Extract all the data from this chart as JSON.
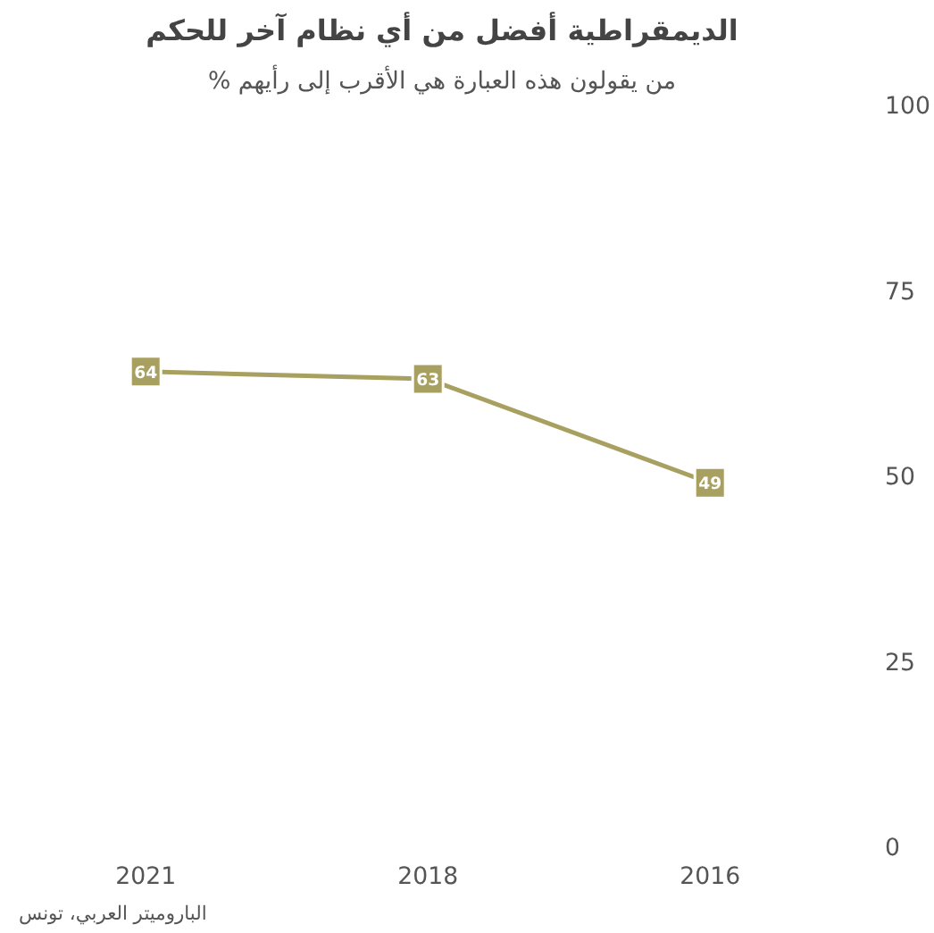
{
  "chart_data": {
    "type": "line",
    "title": "الديمقراطية أفضل من أي نظام آخر للحكم",
    "subtitle": "% من يقولون هذه العبارة هي الأقرب إلى رأيهم",
    "categories": [
      "2021",
      "2018",
      "2016"
    ],
    "series": [
      {
        "color": "#a8a060",
        "values": [
          64,
          63,
          49
        ]
      }
    ],
    "ylim": [
      0,
      100
    ],
    "yticks": [
      0,
      25,
      50,
      75,
      100
    ],
    "grid": false,
    "marker": "square",
    "line_style": "solid",
    "data_labels": true,
    "annotations": [
      "الباروميتر العربي، تونس"
    ]
  }
}
